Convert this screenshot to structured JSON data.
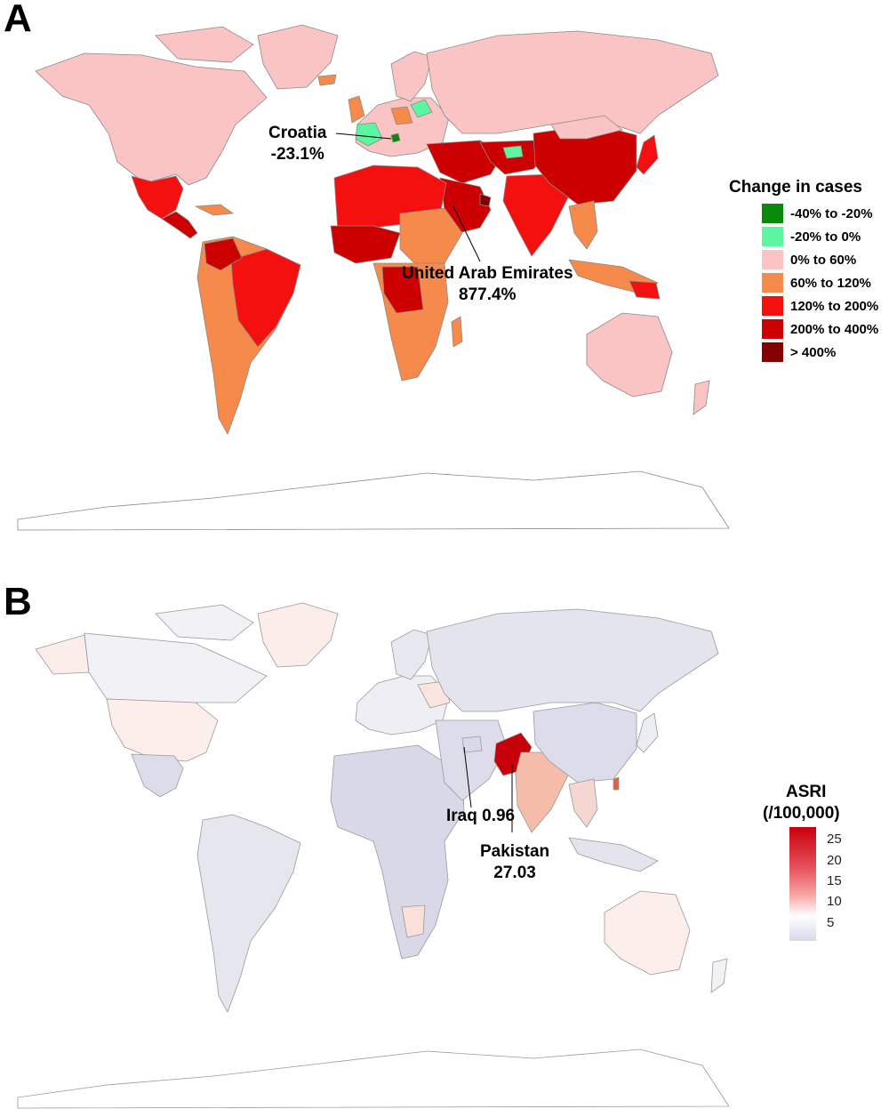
{
  "panel_a": {
    "letter": "A",
    "callouts": {
      "croatia_name": "Croatia",
      "croatia_value": "-23.1%",
      "uae_name": "United Arab Emirates",
      "uae_value": "877.4%"
    },
    "legend": {
      "title": "Change in cases",
      "items": [
        {
          "label": "-40% to -20%",
          "color": "#0a8a0a"
        },
        {
          "label": "-20% to 0%",
          "color": "#5cf5a0"
        },
        {
          "label": "0% to 60%",
          "color": "#fbc4c4"
        },
        {
          "label": "60% to 120%",
          "color": "#f58a4a"
        },
        {
          "label": "120% to 200%",
          "color": "#f51010"
        },
        {
          "label": "200% to 400%",
          "color": "#cc0000"
        },
        {
          "label": "> 400%",
          "color": "#850000"
        }
      ]
    }
  },
  "panel_b": {
    "letter": "B",
    "callouts": {
      "iraq": "Iraq 0.96",
      "pakistan_name": "Pakistan",
      "pakistan_value": "27.03"
    },
    "legend": {
      "title_line1": "ASRI",
      "title_line2": "(/100,000)",
      "ticks": [
        "25",
        "20",
        "15",
        "10",
        "5"
      ],
      "colors": {
        "high": "#c8000a",
        "mid": "#ffffff",
        "low": "#d8d8ea"
      }
    }
  }
}
